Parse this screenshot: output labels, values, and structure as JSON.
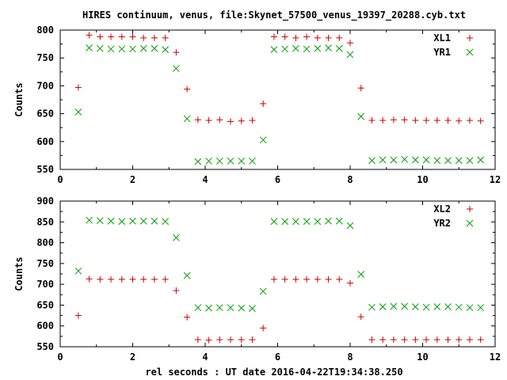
{
  "title": "HIRES continuum, venus, file:Skynet_57500_venus_19397_20288.cyb.txt",
  "xlabel": "rel seconds : UT date 2016-04-22T19:34:38.250",
  "chart_data": [
    {
      "type": "scatter",
      "ylabel": "Counts",
      "xlim": [
        0,
        12
      ],
      "ylim": [
        550,
        800
      ],
      "xticks": [
        0,
        2,
        4,
        6,
        8,
        10,
        12
      ],
      "yticks": [
        550,
        600,
        650,
        700,
        750,
        800
      ],
      "legend": "top-right",
      "grid": false,
      "series": [
        {
          "name": "XL1",
          "marker": "plus",
          "color": "#cc0000",
          "x": [
            0.5,
            0.8,
            1.1,
            1.4,
            1.7,
            2.0,
            2.3,
            2.6,
            2.9,
            3.2,
            3.5,
            3.8,
            4.1,
            4.4,
            4.7,
            5.0,
            5.3,
            5.6,
            5.9,
            6.2,
            6.5,
            6.8,
            7.1,
            7.4,
            7.7,
            8.0,
            8.3,
            8.6,
            8.9,
            9.2,
            9.5,
            9.8,
            10.1,
            10.4,
            10.7,
            11.0,
            11.3,
            11.6
          ],
          "y": [
            697,
            791,
            788,
            788,
            788,
            788,
            786,
            786,
            786,
            760,
            694,
            639,
            638,
            639,
            636,
            637,
            638,
            668,
            788,
            788,
            786,
            788,
            786,
            786,
            786,
            777,
            696,
            638,
            638,
            639,
            639,
            638,
            638,
            638,
            638,
            637,
            638,
            637
          ]
        },
        {
          "name": "YR1",
          "marker": "cross",
          "color": "#00a000",
          "x": [
            0.5,
            0.8,
            1.1,
            1.4,
            1.7,
            2.0,
            2.3,
            2.6,
            2.9,
            3.2,
            3.5,
            3.8,
            4.1,
            4.4,
            4.7,
            5.0,
            5.3,
            5.6,
            5.9,
            6.2,
            6.5,
            6.8,
            7.1,
            7.4,
            7.7,
            8.0,
            8.3,
            8.6,
            8.9,
            9.2,
            9.5,
            9.8,
            10.1,
            10.4,
            10.7,
            11.0,
            11.3,
            11.6
          ],
          "y": [
            653,
            768,
            767,
            766,
            766,
            766,
            767,
            767,
            765,
            731,
            641,
            564,
            565,
            565,
            565,
            565,
            565,
            603,
            765,
            766,
            767,
            766,
            767,
            768,
            767,
            756,
            645,
            566,
            567,
            567,
            568,
            567,
            567,
            566,
            566,
            566,
            566,
            567
          ]
        }
      ]
    },
    {
      "type": "scatter",
      "ylabel": "Counts",
      "xlim": [
        0,
        12
      ],
      "ylim": [
        550,
        900
      ],
      "xticks": [
        0,
        2,
        4,
        6,
        8,
        10,
        12
      ],
      "yticks": [
        550,
        600,
        650,
        700,
        750,
        800,
        850,
        900
      ],
      "legend": "top-right",
      "grid": false,
      "series": [
        {
          "name": "XL2",
          "marker": "plus",
          "color": "#cc0000",
          "x": [
            0.5,
            0.8,
            1.1,
            1.4,
            1.7,
            2.0,
            2.3,
            2.6,
            2.9,
            3.2,
            3.5,
            3.8,
            4.1,
            4.4,
            4.7,
            5.0,
            5.3,
            5.6,
            5.9,
            6.2,
            6.5,
            6.8,
            7.1,
            7.4,
            7.7,
            8.0,
            8.3,
            8.6,
            8.9,
            9.2,
            9.5,
            9.8,
            10.1,
            10.4,
            10.7,
            11.0,
            11.3,
            11.6
          ],
          "y": [
            625,
            713,
            712,
            712,
            712,
            712,
            712,
            712,
            712,
            685,
            621,
            567,
            566,
            567,
            567,
            567,
            567,
            595,
            712,
            712,
            712,
            712,
            712,
            712,
            712,
            703,
            622,
            567,
            567,
            567,
            567,
            567,
            567,
            567,
            567,
            567,
            567,
            567
          ]
        },
        {
          "name": "YR2",
          "marker": "cross",
          "color": "#00a000",
          "x": [
            0.5,
            0.8,
            1.1,
            1.4,
            1.7,
            2.0,
            2.3,
            2.6,
            2.9,
            3.2,
            3.5,
            3.8,
            4.1,
            4.4,
            4.7,
            5.0,
            5.3,
            5.6,
            5.9,
            6.2,
            6.5,
            6.8,
            7.1,
            7.4,
            7.7,
            8.0,
            8.3,
            8.6,
            8.9,
            9.2,
            9.5,
            9.8,
            10.1,
            10.4,
            10.7,
            11.0,
            11.3,
            11.6
          ],
          "y": [
            732,
            854,
            853,
            852,
            851,
            852,
            852,
            852,
            851,
            812,
            721,
            644,
            643,
            644,
            644,
            643,
            642,
            683,
            851,
            851,
            851,
            851,
            851,
            852,
            852,
            841,
            724,
            645,
            646,
            647,
            647,
            646,
            645,
            646,
            646,
            645,
            644,
            644
          ]
        }
      ]
    }
  ]
}
